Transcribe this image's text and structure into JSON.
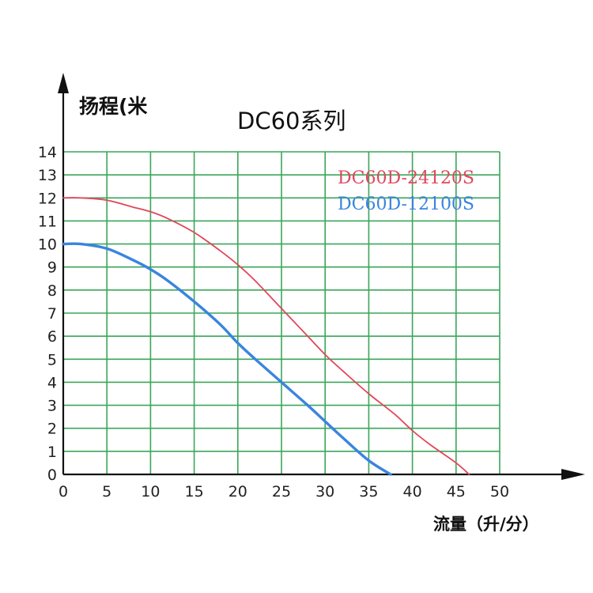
{
  "chart_data": {
    "type": "line",
    "title": "DC60系列",
    "xlabel": "流量（升/分）",
    "ylabel": "扬程(米",
    "xlim": [
      0,
      50
    ],
    "ylim": [
      0,
      14
    ],
    "x_ticks": [
      "0",
      "5",
      "10",
      "15",
      "20",
      "25",
      "30",
      "35",
      "40",
      "45",
      "50"
    ],
    "y_ticks": [
      "0",
      "1",
      "2",
      "3",
      "4",
      "5",
      "6",
      "7",
      "8",
      "9",
      "10",
      "11",
      "12",
      "13",
      "14"
    ],
    "grid": true,
    "legend_position": "top-right",
    "series": [
      {
        "name": "DC60D-24120S",
        "color": "#e0475a",
        "x": [
          0,
          2,
          5,
          8,
          10,
          12,
          15,
          18,
          20,
          22,
          25,
          28,
          30,
          32,
          35,
          38,
          40,
          42,
          45,
          46.5
        ],
        "y": [
          12,
          12,
          11.9,
          11.6,
          11.4,
          11.1,
          10.5,
          9.7,
          9.1,
          8.4,
          7.2,
          6.0,
          5.2,
          4.5,
          3.5,
          2.6,
          1.9,
          1.3,
          0.5,
          0
        ]
      },
      {
        "name": "DC60D-12100S",
        "color": "#3a84e0",
        "x": [
          0,
          2,
          5,
          8,
          10,
          12,
          15,
          18,
          20,
          22,
          25,
          28,
          30,
          32,
          35,
          37.5
        ],
        "y": [
          10,
          10,
          9.8,
          9.3,
          8.9,
          8.4,
          7.5,
          6.5,
          5.7,
          5.0,
          4.0,
          3.0,
          2.3,
          1.6,
          0.6,
          0
        ]
      }
    ]
  }
}
